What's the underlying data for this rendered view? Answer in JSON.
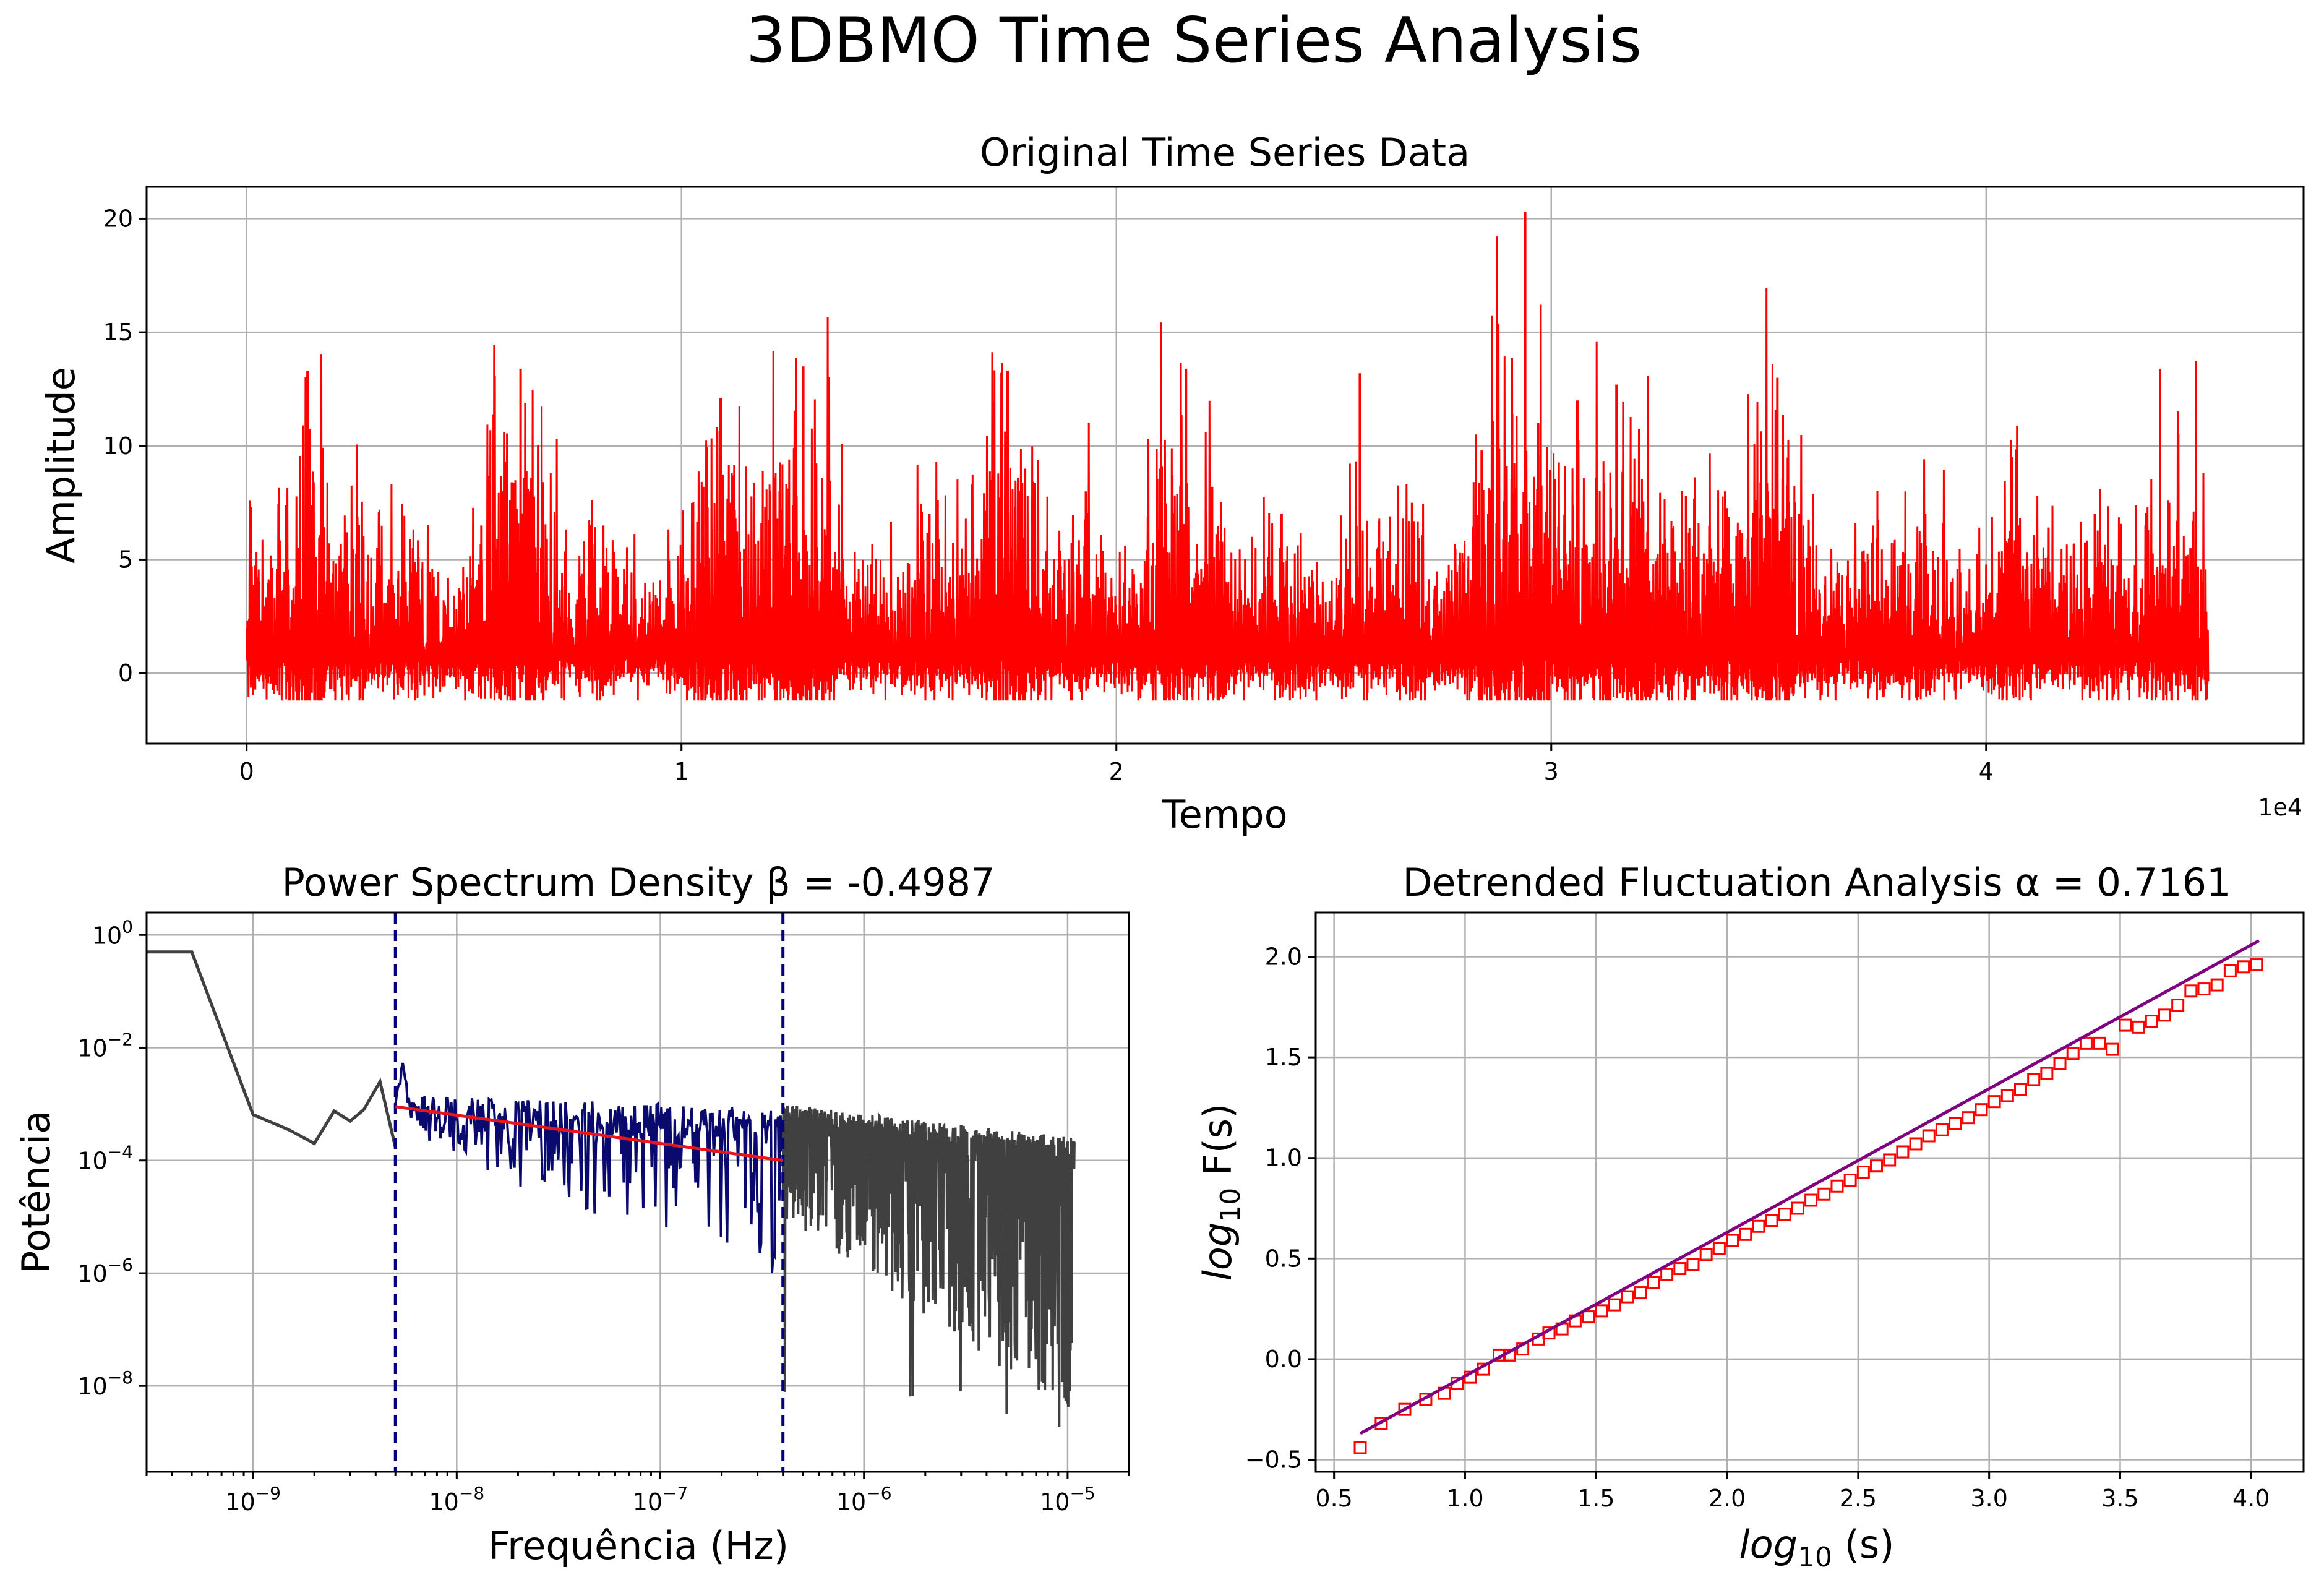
{
  "figure": {
    "title": "3DBMO Time Series Analysis"
  },
  "colors": {
    "timeseries": "#ff0000",
    "psd_full": "#404040",
    "psd_fit_range": "#0a0a6e",
    "psd_fit_line": "#e8141e",
    "psd_cutoff": "#000080",
    "dfa_points": "#ff0000",
    "dfa_fit": "#800080"
  },
  "chart_data": [
    {
      "type": "line",
      "title": "Original Time Series Data",
      "xlabel": "Tempo",
      "ylabel": "Amplitude",
      "x_offset_label": "1e4",
      "xlim": [
        -2300,
        47300
      ],
      "ylim": [
        -3.1,
        21.4
      ],
      "xticks": [
        0,
        10000,
        20000,
        30000,
        40000
      ],
      "xtick_labels": [
        "0",
        "1",
        "2",
        "3",
        "4"
      ],
      "yticks": [
        0,
        5,
        10,
        15,
        20
      ],
      "ytick_labels": [
        "0",
        "5",
        "10",
        "15",
        "20"
      ],
      "grid": true,
      "series": [
        {
          "n_samples": 45100,
          "x_range": [
            0,
            45100
          ],
          "baseline_range": [
            -1.0,
            4.5
          ],
          "spikes": [
            {
              "x": 100,
              "y": 7.3
            },
            {
              "x": 1300,
              "y": 9.0
            },
            {
              "x": 1400,
              "y": 13.3
            },
            {
              "x": 2300,
              "y": 6.2
            },
            {
              "x": 3600,
              "y": 5.3
            },
            {
              "x": 5400,
              "y": 6.5
            },
            {
              "x": 6100,
              "y": 8.4
            },
            {
              "x": 6300,
              "y": 13.4
            },
            {
              "x": 6500,
              "y": 8.0
            },
            {
              "x": 8200,
              "y": 6.5
            },
            {
              "x": 10500,
              "y": 8.2
            },
            {
              "x": 10900,
              "y": 12.1
            },
            {
              "x": 11200,
              "y": 8.7
            },
            {
              "x": 12200,
              "y": 6.8
            },
            {
              "x": 12600,
              "y": 8.3
            },
            {
              "x": 12800,
              "y": 13.5
            },
            {
              "x": 13400,
              "y": 7.0
            },
            {
              "x": 15700,
              "y": 7.0
            },
            {
              "x": 17100,
              "y": 8.5
            },
            {
              "x": 17500,
              "y": 13.3
            },
            {
              "x": 17900,
              "y": 9.0
            },
            {
              "x": 19300,
              "y": 8.0
            },
            {
              "x": 21000,
              "y": 9.0
            },
            {
              "x": 21600,
              "y": 13.4
            },
            {
              "x": 22200,
              "y": 8.2
            },
            {
              "x": 23800,
              "y": 7.0
            },
            {
              "x": 25600,
              "y": 13.2
            },
            {
              "x": 26800,
              "y": 7.5
            },
            {
              "x": 28400,
              "y": 9.8
            },
            {
              "x": 29100,
              "y": 11.4
            },
            {
              "x": 29400,
              "y": 20.3
            },
            {
              "x": 29700,
              "y": 11.0
            },
            {
              "x": 30600,
              "y": 12.0
            },
            {
              "x": 31500,
              "y": 12.7
            },
            {
              "x": 32100,
              "y": 7.5
            },
            {
              "x": 33100,
              "y": 7.8
            },
            {
              "x": 34000,
              "y": 8.0
            },
            {
              "x": 34800,
              "y": 6.8
            },
            {
              "x": 35200,
              "y": 13.0
            },
            {
              "x": 35700,
              "y": 7.0
            },
            {
              "x": 37400,
              "y": 6.5
            },
            {
              "x": 38600,
              "y": 7.0
            },
            {
              "x": 40600,
              "y": 9.5
            },
            {
              "x": 42500,
              "y": 7.0
            },
            {
              "x": 44000,
              "y": 13.4
            },
            {
              "x": 44700,
              "y": 5.5
            }
          ]
        }
      ]
    },
    {
      "type": "line",
      "title": "Power Spectrum Density β = -0.4987",
      "xlabel": "Frequência (Hz)",
      "ylabel": "Potência",
      "xscale": "log",
      "yscale": "log",
      "xlim": [
        3e-10,
        2e-05
      ],
      "ylim": [
        3e-10,
        2.5
      ],
      "xticks": [
        1e-09,
        1e-08,
        1e-07,
        1e-06,
        1e-05
      ],
      "xtick_labels": [
        {
          "base": "10",
          "exp": "−9"
        },
        {
          "base": "10",
          "exp": "−8"
        },
        {
          "base": "10",
          "exp": "−7"
        },
        {
          "base": "10",
          "exp": "−6"
        },
        {
          "base": "10",
          "exp": "−5"
        }
      ],
      "yticks": [
        1e-08,
        1e-06,
        0.0001,
        0.01,
        1
      ],
      "ytick_labels": [
        {
          "base": "10",
          "exp": "−8"
        },
        {
          "base": "10",
          "exp": "−6"
        },
        {
          "base": "10",
          "exp": "−4"
        },
        {
          "base": "10",
          "exp": "−2"
        },
        {
          "base": "10",
          "exp": "0"
        }
      ],
      "grid": true,
      "cutoff_frequencies": [
        5e-09,
        4e-07
      ],
      "fit": {
        "beta": -0.4987,
        "x": [
          5e-09,
          4e-07
        ],
        "y": [
          0.0009,
          0.0001
        ]
      },
      "series": [
        {
          "part": "low",
          "x": [
            3e-10,
            5e-10,
            1e-09,
            1.5e-09,
            2e-09,
            2.5e-09,
            3e-09,
            3.5e-09,
            4.2e-09,
            5e-09
          ],
          "y": [
            0.5,
            0.5,
            0.00065,
            0.00035,
            0.0002,
            0.00075,
            0.0005,
            0.0008,
            0.0025,
            0.00017
          ]
        },
        {
          "part": "fit_range",
          "x_range": [
            5e-09,
            4e-07
          ],
          "peak": {
            "x": 6e-09,
            "y": 0.006
          },
          "upper_envelope": 0.0015,
          "lower_minimum": 1e-06
        },
        {
          "part": "high",
          "x_range": [
            4e-07,
            1.08e-05
          ],
          "upper_envelope": 0.001,
          "lower_minimum": 1e-09
        }
      ]
    },
    {
      "type": "scatter",
      "title": "Detrended Fluctuation Analysis α = 0.7161",
      "xlabel": {
        "base": "log",
        "sub": "10",
        "rest": " (s)"
      },
      "ylabel": {
        "base": "log",
        "sub": "10",
        "rest": " F(s)"
      },
      "xlim": [
        0.43,
        4.2
      ],
      "ylim": [
        -0.56,
        2.22
      ],
      "xticks": [
        0.5,
        1.0,
        1.5,
        2.0,
        2.5,
        3.0,
        3.5,
        4.0
      ],
      "xtick_labels": [
        "0.5",
        "1.0",
        "1.5",
        "2.0",
        "2.5",
        "3.0",
        "3.5",
        "4.0"
      ],
      "yticks": [
        -0.5,
        0.0,
        0.5,
        1.0,
        1.5,
        2.0
      ],
      "ytick_labels": [
        "−0.5",
        "0.0",
        "0.5",
        "1.0",
        "1.5",
        "2.0"
      ],
      "grid": true,
      "fit": {
        "alpha": 0.7161,
        "x": [
          0.6,
          4.03
        ],
        "y": [
          -0.37,
          2.08
        ]
      },
      "series": [
        {
          "x": [
            0.6,
            0.68,
            0.77,
            0.85,
            0.92,
            0.97,
            1.02,
            1.07,
            1.13,
            1.17,
            1.22,
            1.28,
            1.32,
            1.37,
            1.42,
            1.47,
            1.52,
            1.57,
            1.62,
            1.67,
            1.72,
            1.77,
            1.82,
            1.87,
            1.92,
            1.97,
            2.02,
            2.07,
            2.12,
            2.17,
            2.22,
            2.27,
            2.32,
            2.37,
            2.42,
            2.47,
            2.52,
            2.57,
            2.62,
            2.67,
            2.72,
            2.77,
            2.82,
            2.87,
            2.92,
            2.97,
            3.02,
            3.07,
            3.12,
            3.17,
            3.22,
            3.27,
            3.32,
            3.37,
            3.42,
            3.47,
            3.52,
            3.57,
            3.62,
            3.67,
            3.72,
            3.77,
            3.82,
            3.87,
            3.92,
            3.97,
            4.02
          ],
          "y": [
            -0.44,
            -0.32,
            -0.25,
            -0.2,
            -0.17,
            -0.12,
            -0.09,
            -0.05,
            0.02,
            0.02,
            0.05,
            0.1,
            0.13,
            0.15,
            0.19,
            0.21,
            0.24,
            0.27,
            0.31,
            0.33,
            0.38,
            0.42,
            0.45,
            0.47,
            0.52,
            0.55,
            0.59,
            0.62,
            0.66,
            0.69,
            0.72,
            0.75,
            0.79,
            0.82,
            0.86,
            0.89,
            0.93,
            0.96,
            0.99,
            1.03,
            1.07,
            1.11,
            1.14,
            1.17,
            1.2,
            1.24,
            1.28,
            1.31,
            1.34,
            1.39,
            1.42,
            1.47,
            1.52,
            1.57,
            1.57,
            1.54,
            1.66,
            1.65,
            1.68,
            1.71,
            1.76,
            1.83,
            1.84,
            1.86,
            1.93,
            1.95,
            1.96
          ]
        }
      ]
    }
  ]
}
